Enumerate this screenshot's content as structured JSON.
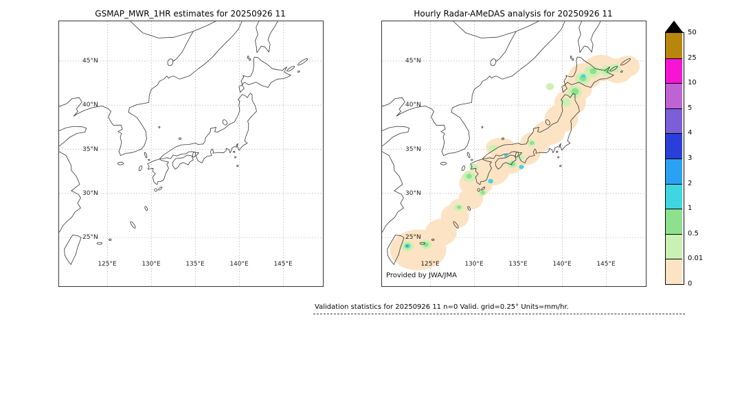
{
  "axes": {
    "lat": [
      {
        "value": 45,
        "label": "45°N"
      },
      {
        "value": 40,
        "label": "40°N"
      },
      {
        "value": 35,
        "label": "35°N"
      },
      {
        "value": 30,
        "label": "30°N"
      },
      {
        "value": 25,
        "label": "25°N"
      }
    ],
    "lon": [
      {
        "value": 125,
        "label": "125°E"
      },
      {
        "value": 130,
        "label": "130°E"
      },
      {
        "value": 135,
        "label": "135°E"
      },
      {
        "value": 140,
        "label": "140°E"
      },
      {
        "value": 145,
        "label": "145°E"
      }
    ]
  },
  "credit": "Provided by JWA/JMA",
  "footer": {
    "text": "Validation statistics for 20250926 11  n=0 Valid. grid=0.25° Units=mm/hr."
  },
  "chart_data": {
    "type": "heatmap",
    "subtype": "two-panel geographic precipitation comparison over the Japan region",
    "lon_range": [
      119.5,
      149.5
    ],
    "lat_range": [
      19.5,
      49.5
    ],
    "grid_lons": [
      125,
      130,
      135,
      140,
      145
    ],
    "grid_lats": [
      25,
      30,
      35,
      40,
      45
    ],
    "colorbar": {
      "units": "mm/hr",
      "levels": [
        0,
        0.01,
        0.5,
        1,
        2,
        3,
        4,
        5,
        10,
        25,
        50
      ],
      "colors": [
        "#fce3c3",
        "#cbf0b4",
        "#8de18c",
        "#3ed6e0",
        "#2aa1f2",
        "#2a3fd9",
        "#7b5ed8",
        "#bf63d4",
        "#f714d4",
        "#b8860b"
      ],
      "overflow_color": "#000000",
      "labels_top_down": [
        "50",
        "25",
        "10",
        "5",
        "4",
        "3",
        "2",
        "1",
        "0.5",
        "0.01",
        "0"
      ]
    },
    "point_format": "[lon_deg, lat_deg, rx_deg, ry_deg, intensity_bin] where intensity_bin i means value in (levels[i], levels[i+1]] mm/hr",
    "panels": [
      {
        "title": "GSMAP_MWR_1HR estimates for 20250926 11",
        "points": []
      },
      {
        "title": "Hourly Radar-AMeDAS analysis for 20250926 11",
        "points": [
          [
            123.6,
            23.6,
            3.2,
            2.3,
            0
          ],
          [
            126.2,
            25.6,
            1.8,
            1.5,
            0
          ],
          [
            127.8,
            27.4,
            1.6,
            1.4,
            0
          ],
          [
            129.6,
            29.4,
            1.4,
            1.2,
            0
          ],
          [
            128.3,
            28.5,
            1.1,
            0.9,
            0
          ],
          [
            130.2,
            31.2,
            1.9,
            1.6,
            0
          ],
          [
            132.0,
            32.6,
            2.0,
            1.7,
            0
          ],
          [
            133.9,
            33.7,
            2.0,
            1.5,
            0
          ],
          [
            135.7,
            34.5,
            1.8,
            1.3,
            0
          ],
          [
            133.0,
            35.2,
            1.7,
            1.1,
            0
          ],
          [
            136.9,
            35.7,
            1.7,
            1.3,
            0
          ],
          [
            138.5,
            36.9,
            1.8,
            1.4,
            0
          ],
          [
            139.9,
            38.5,
            1.9,
            1.6,
            0
          ],
          [
            140.9,
            40.3,
            1.8,
            1.5,
            0
          ],
          [
            141.7,
            41.9,
            1.7,
            1.4,
            0
          ],
          [
            142.6,
            43.3,
            1.9,
            1.5,
            0
          ],
          [
            144.4,
            44.2,
            2.0,
            1.5,
            0
          ],
          [
            146.3,
            43.9,
            1.7,
            1.4,
            0
          ],
          [
            147.4,
            44.4,
            1.4,
            1.2,
            0
          ],
          [
            122.4,
            24.0,
            0.7,
            0.55,
            1
          ],
          [
            124.5,
            24.2,
            0.65,
            0.5,
            1
          ],
          [
            129.4,
            31.9,
            0.75,
            0.6,
            1
          ],
          [
            129.9,
            33.0,
            0.5,
            0.4,
            1
          ],
          [
            130.9,
            30.1,
            0.45,
            0.4,
            1
          ],
          [
            128.2,
            28.4,
            0.5,
            0.4,
            1
          ],
          [
            134.3,
            33.3,
            0.55,
            0.45,
            1
          ],
          [
            135.2,
            34.1,
            0.45,
            0.35,
            1
          ],
          [
            132.1,
            35.1,
            0.5,
            0.4,
            1
          ],
          [
            136.5,
            35.7,
            0.45,
            0.4,
            1
          ],
          [
            140.4,
            40.3,
            0.55,
            0.5,
            1
          ],
          [
            141.4,
            41.5,
            0.8,
            0.7,
            1
          ],
          [
            142.3,
            43.0,
            0.85,
            0.7,
            1
          ],
          [
            143.4,
            43.8,
            0.9,
            0.7,
            1
          ],
          [
            145.0,
            43.9,
            0.7,
            0.6,
            1
          ],
          [
            146.0,
            44.2,
            0.6,
            0.5,
            1
          ],
          [
            138.6,
            42.1,
            0.45,
            0.4,
            1
          ],
          [
            122.4,
            24.05,
            0.38,
            0.3,
            2
          ],
          [
            124.5,
            24.2,
            0.3,
            0.25,
            2
          ],
          [
            129.4,
            31.95,
            0.32,
            0.28,
            2
          ],
          [
            134.35,
            33.35,
            0.3,
            0.25,
            2
          ],
          [
            141.45,
            41.55,
            0.42,
            0.38,
            2
          ],
          [
            142.35,
            43.05,
            0.4,
            0.35,
            2
          ],
          [
            143.5,
            43.85,
            0.4,
            0.32,
            2
          ],
          [
            145.05,
            43.9,
            0.3,
            0.26,
            2
          ],
          [
            136.55,
            35.72,
            0.26,
            0.22,
            2
          ],
          [
            130.95,
            30.1,
            0.25,
            0.2,
            2
          ],
          [
            128.25,
            28.45,
            0.25,
            0.2,
            2
          ],
          [
            131.85,
            31.4,
            0.3,
            0.26,
            3
          ],
          [
            135.35,
            33.0,
            0.27,
            0.23,
            3
          ],
          [
            133.6,
            34.3,
            0.2,
            0.18,
            3
          ],
          [
            122.4,
            24.05,
            0.22,
            0.2,
            3
          ],
          [
            142.4,
            43.3,
            0.26,
            0.22,
            3
          ],
          [
            122.35,
            24.05,
            0.13,
            0.12,
            4
          ]
        ]
      }
    ]
  }
}
